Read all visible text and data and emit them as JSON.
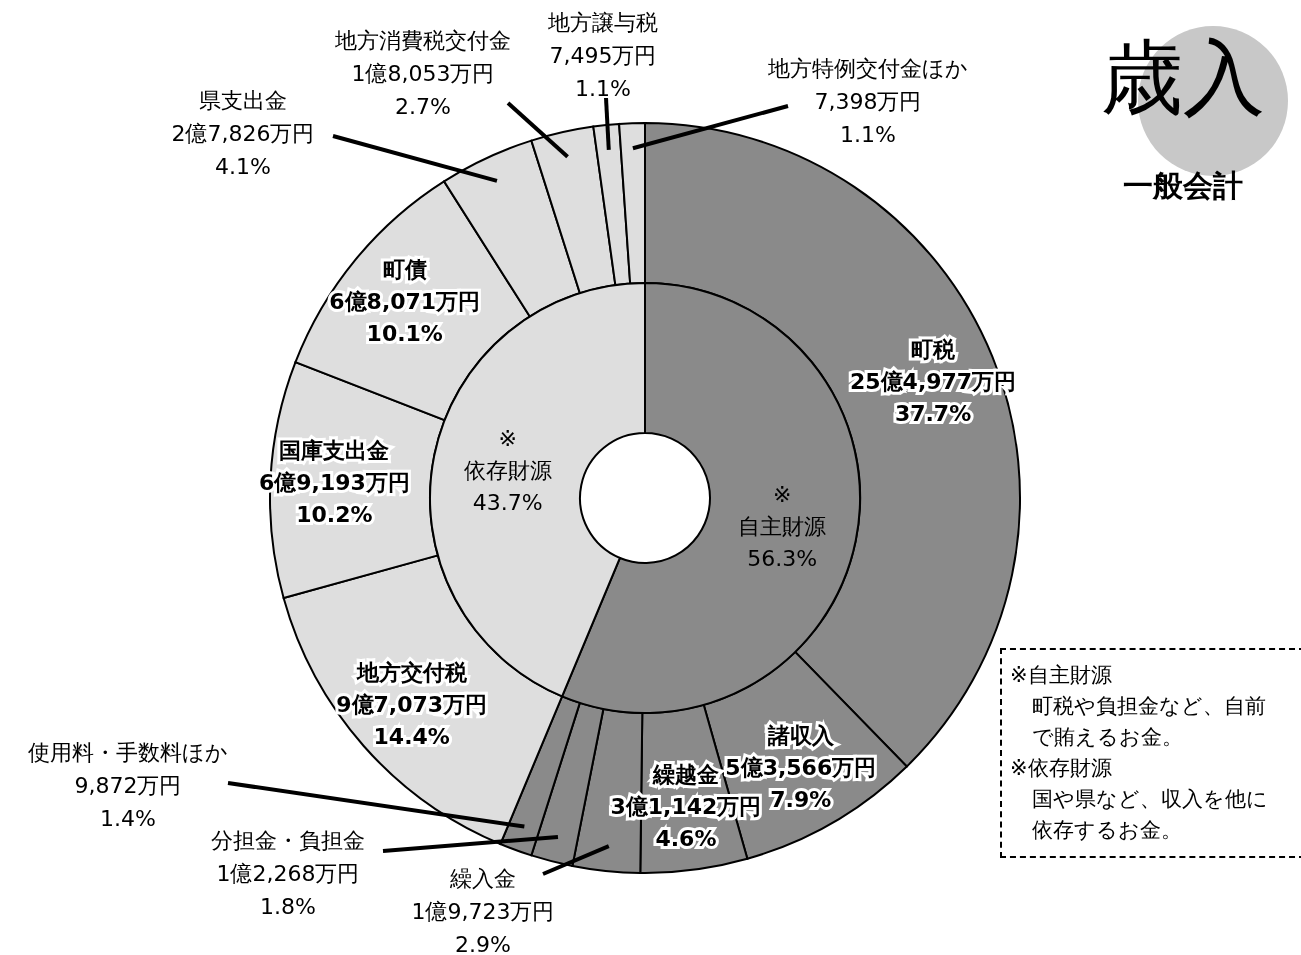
{
  "chart_data": [
    {
      "type": "donut",
      "title": "歳入",
      "subtitle": "一般会計",
      "categories": [
        "町税",
        "諸収入",
        "繰越金",
        "繰入金",
        "分担金・負担金",
        "使用料・手数料ほか",
        "地方交付税",
        "国庫支出金",
        "町債",
        "県支出金",
        "地方消費税交付金",
        "地方譲与税",
        "地方特例交付金ほか"
      ],
      "values": [
        37.7,
        7.9,
        4.6,
        2.9,
        1.8,
        1.4,
        14.4,
        10.2,
        10.1,
        4.1,
        2.7,
        1.1,
        1.1
      ],
      "colors": [
        "#8a8a8a",
        "#8a8a8a",
        "#8a8a8a",
        "#8a8a8a",
        "#8a8a8a",
        "#8a8a8a",
        "#dedede",
        "#dedede",
        "#dedede",
        "#dedede",
        "#dedede",
        "#dedede",
        "#dedede"
      ],
      "value_labels": [
        "25億4,977万円\n37.7%",
        "5億3,566万円\n7.9%",
        "3億1,142万円\n4.6%",
        "1億9,723万円\n2.9%",
        "1億2,268万円\n1.8%",
        "9,872万円\n1.4%",
        "9億7,073万円\n14.4%",
        "6億9,193万円\n10.2%",
        "6億8,071万円\n10.1%",
        "2億7,826万円\n4.1%",
        "1億8,053万円\n2.7%",
        "7,495万円\n1.1%",
        "7,398万円\n1.1%"
      ],
      "annotations": [
        "※自主財源",
        "町税や負担金など、自前で賄えるお金。",
        "※依存財源",
        "国や県など、収入を他に依存するお金。"
      ]
    },
    {
      "type": "donut",
      "categories": [
        "※\n自主財源",
        "※\n依存財源"
      ],
      "values": [
        56.3,
        43.7
      ],
      "colors": [
        "#8a8a8a",
        "#dedede"
      ],
      "value_labels": [
        "56.3%",
        "43.7%"
      ]
    }
  ]
}
